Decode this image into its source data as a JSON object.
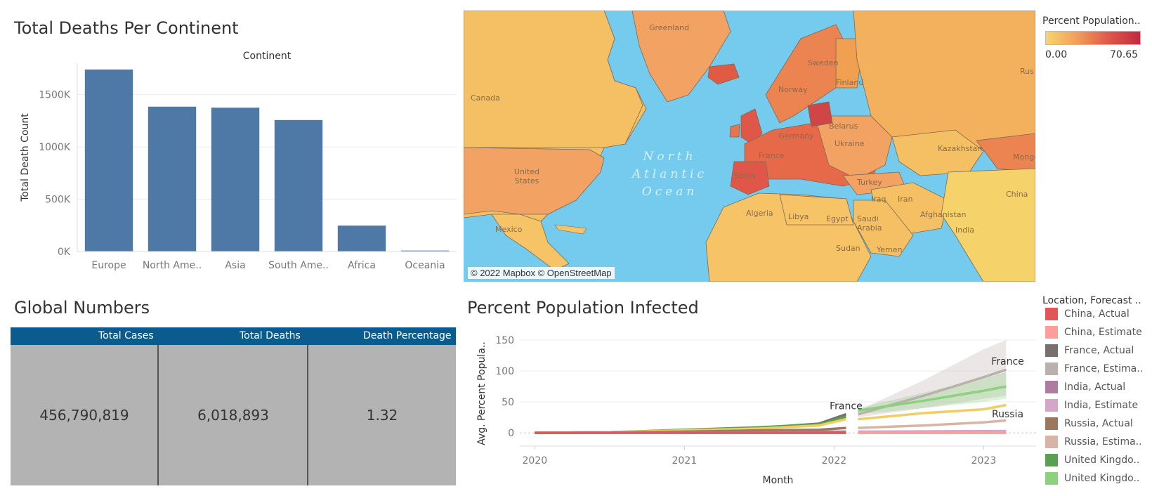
{
  "bar_panel": {
    "title": "Total Deaths Per Continent"
  },
  "map_panel": {
    "attribution": "© 2022 Mapbox © OpenStreetMap",
    "ocean_label": "North\nAtlantic\nOcean",
    "labels": [
      "Greenland",
      "Canada",
      "United States",
      "Mexico",
      "Sweden",
      "Norway",
      "Finland",
      "Germany",
      "France",
      "Belarus",
      "Ukraine",
      "Spain",
      "Turkey",
      "Kazakhstan",
      "Mongolia",
      "China",
      "Iran",
      "Iraq",
      "Algeria",
      "Libya",
      "Egypt",
      "Saudi Arabia",
      "Sudan",
      "Yemen",
      "India",
      "Afghanistan",
      "Rus"
    ],
    "legend": {
      "title": "Percent Population..",
      "min_label": "0.00",
      "max_label": "70.65",
      "colors": [
        "#f7d56e",
        "#f29d5a",
        "#e0574a",
        "#c4283f"
      ]
    }
  },
  "global_numbers": {
    "title": "Global Numbers",
    "headers": [
      "Total Cases",
      "Total Deaths",
      "Death Percentage"
    ],
    "values": [
      "456,790,819",
      "6,018,893",
      "1.32"
    ]
  },
  "line_panel": {
    "title": "Percent Population Infected",
    "legend_title": "Location, Forecast ..",
    "legend_items": [
      {
        "label": "China, Actual",
        "color": "#e15759"
      },
      {
        "label": "China, Estimate",
        "color": "#ff9d9a"
      },
      {
        "label": "France, Actual",
        "color": "#79706e"
      },
      {
        "label": "France, Estima..",
        "color": "#bab0ac"
      },
      {
        "label": "India, Actual",
        "color": "#b07aa1"
      },
      {
        "label": "India, Estimate",
        "color": "#d4a6c8"
      },
      {
        "label": "Russia, Actual",
        "color": "#9d7660"
      },
      {
        "label": "Russia, Estima..",
        "color": "#d7b5a6"
      },
      {
        "label": "United Kingdo..",
        "color": "#59a14f"
      },
      {
        "label": "United Kingdo..",
        "color": "#8cd17d"
      }
    ],
    "annotations": [
      "France",
      "France",
      "Russia"
    ]
  },
  "chart_data": [
    {
      "type": "bar",
      "title": "",
      "header": "Continent",
      "xlabel": "",
      "ylabel": "Total Death Count",
      "categories": [
        "Europe",
        "North Ame..",
        "Asia",
        "South Ame..",
        "Africa",
        "Oceania"
      ],
      "values": [
        1740000,
        1385000,
        1375000,
        1257000,
        248000,
        9000
      ],
      "ylim": [
        0,
        1800000
      ],
      "yticks": [
        "0K",
        "500K",
        "1000K",
        "1500K"
      ],
      "ytick_values": [
        0,
        500000,
        1000000,
        1500000
      ],
      "color": "#4e79a7",
      "grid": true
    },
    {
      "type": "line",
      "title": "Percent Population Infected",
      "xlabel": "Month",
      "ylabel": "Avg. Percent Popula..",
      "xlim": [
        2019.9,
        2023.35
      ],
      "ylim": [
        -10,
        160
      ],
      "xticks": [
        "2020",
        "2021",
        "2022",
        "2023"
      ],
      "xtick_values": [
        2020,
        2021,
        2022,
        2023
      ],
      "yticks": [
        "0",
        "50",
        "100",
        "150"
      ],
      "ytick_values": [
        0,
        50,
        100,
        150
      ],
      "series": [
        {
          "name": "France, Actual",
          "color": "#79706e",
          "x": [
            2020,
            2020.5,
            2021,
            2021.5,
            2021.9,
            2022.08
          ],
          "y": [
            0,
            1,
            4,
            8,
            15,
            30
          ]
        },
        {
          "name": "France, Estima..",
          "color": "#bab0ac",
          "x": [
            2022.16,
            2022.6,
            2023.0,
            2023.15
          ],
          "y": [
            30,
            60,
            90,
            102
          ]
        },
        {
          "name": "United Kingdo..",
          "color": "#59a14f",
          "x": [
            2020,
            2020.5,
            2021,
            2021.5,
            2021.9,
            2022.08
          ],
          "y": [
            0,
            1,
            5,
            9,
            14,
            26
          ]
        },
        {
          "name": "United Kingdo..",
          "color": "#8cd17d",
          "x": [
            2022.16,
            2022.6,
            2023.0,
            2023.15
          ],
          "y": [
            36,
            52,
            68,
            75
          ]
        },
        {
          "name": "",
          "color": "#f1ce63",
          "x": [
            2020,
            2020.5,
            2021,
            2021.5,
            2021.9,
            2022.08
          ],
          "y": [
            0,
            1,
            4,
            7,
            12,
            22
          ]
        },
        {
          "name": "",
          "color": "#f1ce63",
          "x": [
            2022.16,
            2022.6,
            2023.0,
            2023.15
          ],
          "y": [
            22,
            32,
            38,
            45
          ]
        },
        {
          "name": "Russia, Actual",
          "color": "#9d7660",
          "x": [
            2020,
            2020.5,
            2021,
            2021.5,
            2021.9,
            2022.08
          ],
          "y": [
            0,
            0.5,
            2,
            4,
            5,
            8
          ]
        },
        {
          "name": "Russia, Estima..",
          "color": "#d7b5a6",
          "x": [
            2022.16,
            2022.6,
            2023.0,
            2023.15
          ],
          "y": [
            8,
            12,
            17,
            20
          ]
        },
        {
          "name": "India, Actual",
          "color": "#b07aa1",
          "x": [
            2020,
            2021,
            2022.08
          ],
          "y": [
            0,
            1,
            2
          ]
        },
        {
          "name": "India, Estimate",
          "color": "#d4a6c8",
          "x": [
            2022.16,
            2023.15
          ],
          "y": [
            2,
            3
          ]
        },
        {
          "name": "China, Actual",
          "color": "#e15759",
          "x": [
            2020,
            2021,
            2022.08
          ],
          "y": [
            0,
            0,
            0
          ]
        },
        {
          "name": "China, Estimate",
          "color": "#ff9d9a",
          "x": [
            2022.16,
            2023.15
          ],
          "y": [
            0,
            0
          ]
        }
      ],
      "bands": [
        {
          "color": "#bab0ac",
          "x": [
            2022.16,
            2022.6,
            2023.0,
            2023.15
          ],
          "lower": [
            25,
            40,
            55,
            60
          ],
          "upper": [
            36,
            85,
            135,
            150
          ]
        },
        {
          "color": "#8cd17d",
          "x": [
            2022.16,
            2022.6,
            2023.0,
            2023.15
          ],
          "lower": [
            30,
            40,
            50,
            55
          ],
          "upper": [
            40,
            65,
            88,
            98
          ]
        }
      ]
    }
  ]
}
